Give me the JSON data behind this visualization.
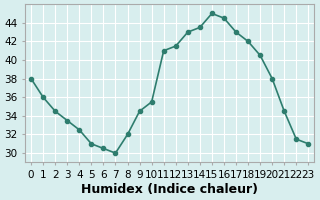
{
  "x": [
    0,
    1,
    2,
    3,
    4,
    5,
    6,
    7,
    8,
    9,
    10,
    11,
    12,
    13,
    14,
    15,
    16,
    17,
    18,
    19,
    20,
    21,
    22,
    23
  ],
  "y": [
    38,
    36,
    34.5,
    33.5,
    32.5,
    31,
    30.5,
    30,
    32,
    34.5,
    35.5,
    41,
    41.5,
    43,
    43.5,
    45,
    44.5,
    43,
    42,
    40.5,
    38,
    34.5,
    31.5,
    31
  ],
  "line_color": "#2e7d6e",
  "marker": "o",
  "marker_size": 3,
  "bg_color": "#d8eeee",
  "grid_color": "#ffffff",
  "xlabel": "Humidex (Indice chaleur)",
  "ylim": [
    29,
    46
  ],
  "xlim": [
    -0.5,
    23.5
  ],
  "yticks": [
    30,
    32,
    34,
    36,
    38,
    40,
    42,
    44
  ],
  "xtick_labels": [
    "0",
    "1",
    "2",
    "3",
    "4",
    "5",
    "6",
    "7",
    "8",
    "9",
    "10",
    "11",
    "12",
    "13",
    "14",
    "15",
    "16",
    "17",
    "18",
    "19",
    "20",
    "21",
    "22",
    "23"
  ],
  "xlabel_fontsize": 9,
  "tick_fontsize": 7.5,
  "line_width": 1.2
}
